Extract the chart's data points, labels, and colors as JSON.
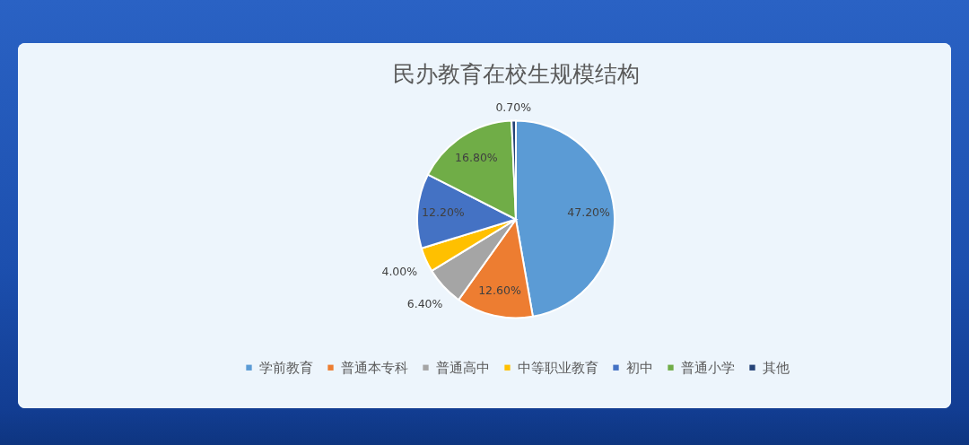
{
  "chart_data": {
    "type": "pie",
    "title": "民办教育在校生规模结构",
    "categories": [
      "学前教育",
      "普通本专科",
      "普通高中",
      "中等职业教育",
      "初中",
      "普通小学",
      "其他"
    ],
    "values": [
      47.2,
      12.6,
      6.4,
      4.0,
      12.2,
      16.8,
      0.7
    ],
    "colors": [
      "#5b9bd5",
      "#ed7d31",
      "#a5a5a5",
      "#ffc000",
      "#4472c4",
      "#70ad47",
      "#264478"
    ],
    "value_labels": [
      "47.20%",
      "12.60%",
      "6.40%",
      "4.00%",
      "12.20%",
      "16.80%",
      "0.70%"
    ],
    "legend": "bottom"
  }
}
